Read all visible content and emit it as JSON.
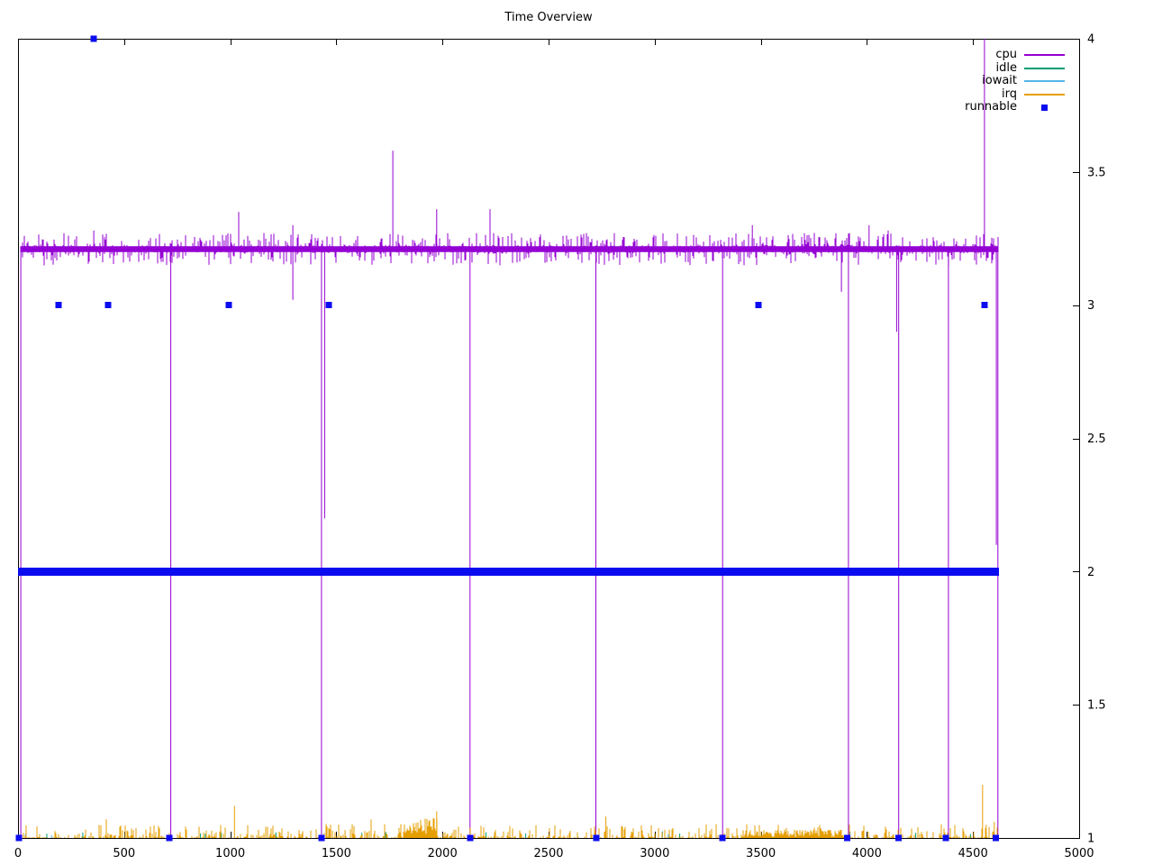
{
  "chart_data": {
    "type": "line",
    "title": "Time Overview",
    "xlabel": "",
    "ylabel": "",
    "xlim": [
      0,
      5000
    ],
    "ylim": [
      1,
      4
    ],
    "xticks": [
      0,
      500,
      1000,
      1500,
      2000,
      2500,
      3000,
      3500,
      4000,
      4500,
      5000
    ],
    "yticks": [
      1,
      1.5,
      2,
      2.5,
      3,
      3.5,
      4
    ],
    "yticks_position": "right",
    "grid": false,
    "legend_position": "top-right-inside",
    "background": "#ffffff",
    "axis_color": "#000000",
    "series": [
      {
        "name": "cpu",
        "color": "#9400d3",
        "style": "line",
        "band": {
          "x_start": 13,
          "x_end": 4617,
          "center": 3.21,
          "core_halfwidth": 0.011,
          "spike_up_max": 0.05,
          "spike_down_max": 0.05,
          "spike_density": 0.42
        },
        "dips_to_1": [
          13,
          720,
          1430,
          2130,
          2723,
          3320,
          3913,
          4150,
          4384,
          4617
        ],
        "partial_dips": [
          [
            1445,
            2.2
          ],
          [
            1295,
            3.02
          ],
          [
            3880,
            3.05
          ],
          [
            4140,
            2.9
          ],
          [
            4610,
            2.1
          ]
        ],
        "spikes": [
          [
            357,
            3.28
          ],
          [
            1040,
            3.35
          ],
          [
            1295,
            3.3
          ],
          [
            1766,
            3.58
          ],
          [
            1973,
            3.36
          ],
          [
            2224,
            3.36
          ],
          [
            3460,
            3.3
          ],
          [
            4010,
            3.3
          ],
          [
            4100,
            3.28
          ],
          [
            4554,
            4.0
          ]
        ]
      },
      {
        "name": "idle",
        "color": "#009e73",
        "style": "line",
        "baseline": 1.0,
        "ticks": [
          136,
          305,
          860,
          882,
          958,
          1215,
          1620,
          1732,
          1908,
          2205,
          2392,
          2600,
          2858,
          3036,
          3118,
          3920,
          4230,
          4488
        ],
        "tick_height": 0.02
      },
      {
        "name": "iowait",
        "color": "#56b4e9",
        "style": "line",
        "baseline": 1.0,
        "ticks": [
          35,
          158,
          1655,
          2890,
          3064,
          4452
        ],
        "tick_height": 0.012
      },
      {
        "name": "irq",
        "color": "#e69f00",
        "style": "line",
        "baseline": 1.0,
        "noise": {
          "x_start": 0,
          "x_end": 4620,
          "density": 0.5,
          "max_height": 0.05
        },
        "bursts": [
          {
            "x_start": 1817,
            "x_end": 1975,
            "min_height": 0.015,
            "max_height": 0.075
          },
          {
            "x_start": 3410,
            "x_end": 3890,
            "min_height": 0.003,
            "max_height": 0.03
          }
        ],
        "spikes": [
          [
            416,
            1.07
          ],
          [
            1020,
            1.12
          ],
          [
            1664,
            1.07
          ],
          [
            1973,
            1.1
          ],
          [
            2770,
            1.08
          ],
          [
            4545,
            1.2
          ],
          [
            4562,
            1.05
          ],
          [
            4600,
            1.06
          ]
        ]
      },
      {
        "name": "runnable",
        "color": "#0b0bf0",
        "style": "points",
        "marker": "square",
        "bar_at_2": {
          "x_start": 0,
          "x_end": 4622,
          "y": 2
        },
        "points_y4": [
          357
        ],
        "points_y3": [
          190,
          424,
          993,
          1464,
          3489,
          4554
        ],
        "points_y1": [
          4,
          713,
          1430,
          2130,
          2725,
          3320,
          3908,
          4150,
          4372,
          4608
        ]
      }
    ]
  }
}
